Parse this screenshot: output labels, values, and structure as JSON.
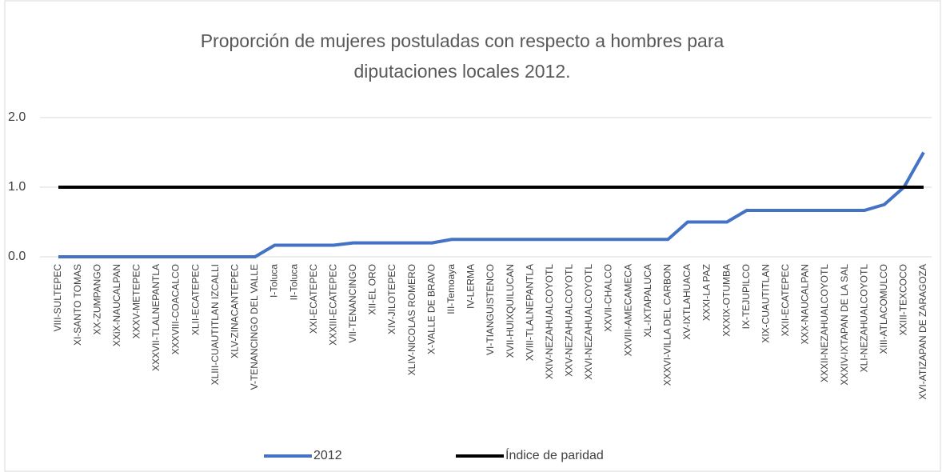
{
  "chart_data": {
    "type": "line",
    "title": "Proporción de mujeres postuladas con respecto a hombres para diputaciones locales 2012.",
    "categories": [
      "VIII-SULTEPEC",
      "XI-SANTO TOMAS",
      "XX-ZUMPANGO",
      "XXiX-NAUCALPAN",
      "XXXV-METEPEC",
      "XXXVII-TLALNEPANTLA",
      "XXXVIII-COACALCO",
      "XLII-ECATEPEC",
      "XLIII-CUAUTITLAN IZCALLI",
      "XLV-ZINACANTEPEC",
      "V-TENANCINGO DEL VALLE",
      "I-Toluca",
      "II-Toluca",
      "XXI-ECATEPEC",
      "XXXIII-ECATEPEC",
      "VII-TENANCINGO",
      "XII-EL ORO",
      "XIV-JILOTEPEC",
      "XLIV-NICOLAS ROMERO",
      "X-VALLE DE BRAVO",
      "III-Temoaya",
      "IV-LERMA",
      "VI-TIANGUISTENCO",
      "XVII-HUIXQUILUCAN",
      "XVIII-TLALNEPANTLA",
      "XXIV-NEZAHUALCOYOTL",
      "XXV-NEZAHUALCOYOTL",
      "XXVI-NEZAHUALCOYOTL",
      "XXVII-CHALCO",
      "XXVIII-AMECAMECA",
      "XL-IXTAPALUCA",
      "XXXVI-VILLA DEL CARBON",
      "XV-IXTLAHUACA",
      "XXXI-LA PAZ",
      "XXXIX-OTUMBA",
      "IX-TEJUPILCO",
      "XIX-CUAUTITLAN",
      "XXII-ECATEPEC",
      "XXX-NAUCALPAN",
      "XXXII-NEZAHUALCOYOTL",
      "XXXIV-IXTAPAN DE LA SAL",
      "XLI-NEZAHUALCOYOTL",
      "XIII-ATLACOMULCO",
      "XXIII-TEXCOCO",
      "XVI-ATIZAPAN DE ZARAGOZA"
    ],
    "series": [
      {
        "name": "2012",
        "color": "#4472c4",
        "values": [
          0,
          0,
          0,
          0,
          0,
          0,
          0,
          0,
          0,
          0,
          0,
          0.167,
          0.167,
          0.167,
          0.167,
          0.2,
          0.2,
          0.2,
          0.2,
          0.2,
          0.25,
          0.25,
          0.25,
          0.25,
          0.25,
          0.25,
          0.25,
          0.25,
          0.25,
          0.25,
          0.25,
          0.25,
          0.5,
          0.5,
          0.5,
          0.667,
          0.667,
          0.667,
          0.667,
          0.667,
          0.667,
          0.667,
          0.75,
          1.0,
          1.5
        ]
      },
      {
        "name": "Índice de paridad",
        "color": "#000000",
        "values": [
          1,
          1,
          1,
          1,
          1,
          1,
          1,
          1,
          1,
          1,
          1,
          1,
          1,
          1,
          1,
          1,
          1,
          1,
          1,
          1,
          1,
          1,
          1,
          1,
          1,
          1,
          1,
          1,
          1,
          1,
          1,
          1,
          1,
          1,
          1,
          1,
          1,
          1,
          1,
          1,
          1,
          1,
          1,
          1,
          1
        ]
      }
    ],
    "ylim": [
      0,
      2
    ],
    "yticks": [
      {
        "value": 0,
        "label": "0.0"
      },
      {
        "value": 1,
        "label": "1.0"
      },
      {
        "value": 2,
        "label": "2.0"
      }
    ],
    "grid": true,
    "legend": "bottom"
  }
}
